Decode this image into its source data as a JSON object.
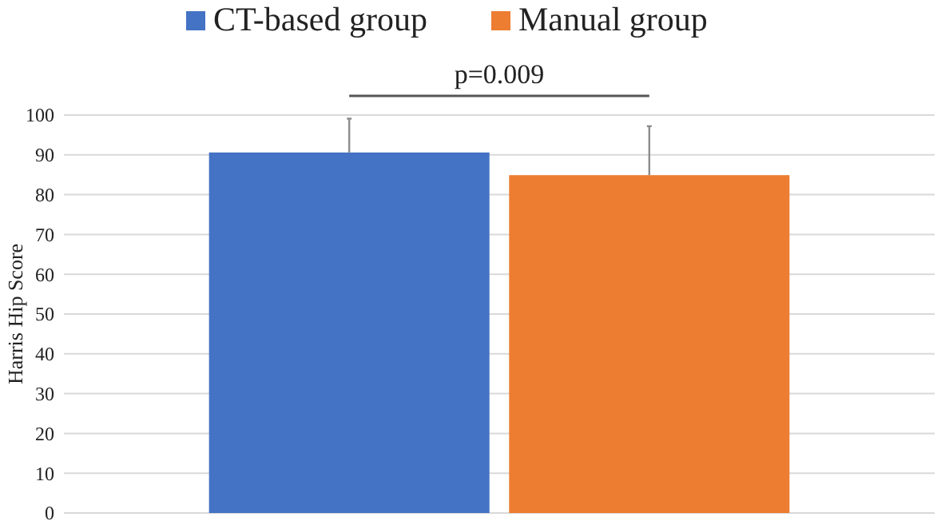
{
  "chart_data": {
    "type": "bar",
    "ylabel": "Harris Hip Score",
    "categories": [
      null
    ],
    "series": [
      {
        "name": "CT-based group",
        "color": "#4472c4",
        "values": [
          90.6
        ],
        "errors": [
          [
            90.6,
            99.1
          ]
        ]
      },
      {
        "name": "Manual group",
        "color": "#ed7d31",
        "values": [
          84.9
        ],
        "errors": [
          [
            84.9,
            97.2
          ]
        ]
      }
    ],
    "ylim": [
      0,
      100
    ],
    "yticks": [
      0,
      10,
      20,
      30,
      40,
      50,
      60,
      70,
      80,
      90,
      100
    ],
    "grid": "y",
    "legend": "top",
    "annotations": [
      "p=0.009"
    ]
  }
}
